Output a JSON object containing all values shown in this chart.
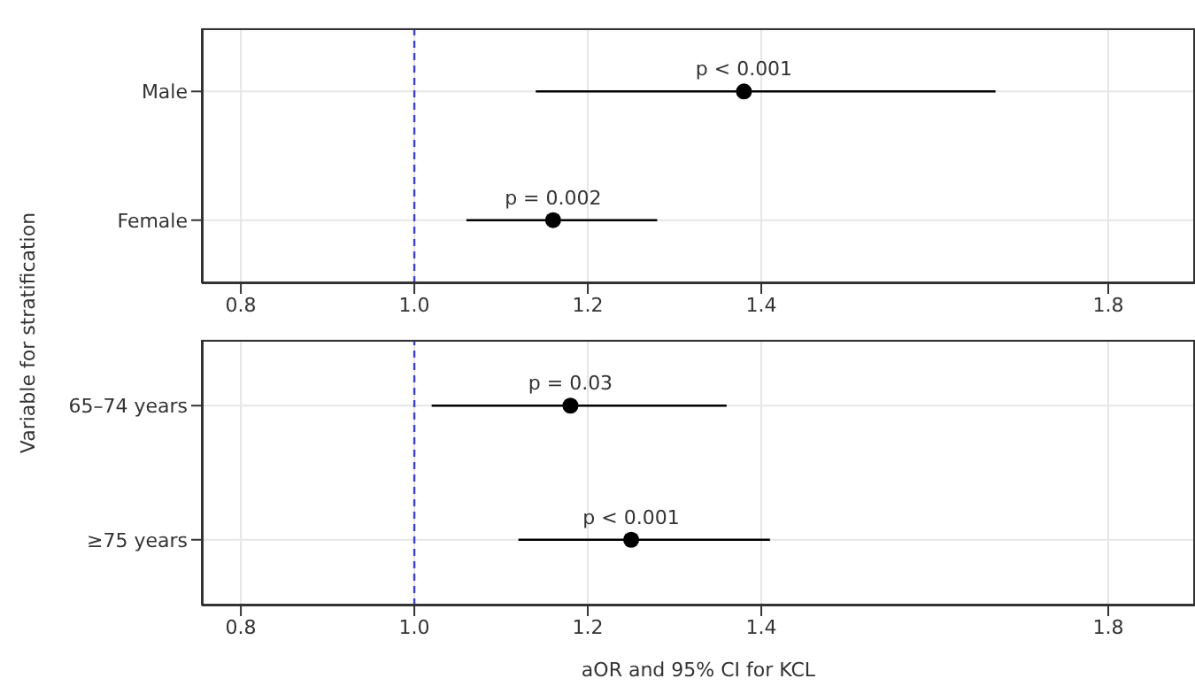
{
  "chart_data": [
    {
      "type": "scatter",
      "ylabel": "Variable for stratification",
      "categories": [
        "Male",
        "Female"
      ],
      "orientation": "horizontal",
      "series": [
        {
          "color": "#000000",
          "values": [
            1.38,
            1.16
          ],
          "errors": [
            [
              1.14,
              1.67
            ],
            [
              1.06,
              1.28
            ]
          ]
        }
      ],
      "xlim": [
        0.755,
        1.9
      ],
      "xticks": [
        {
          "value": 0.8,
          "label": "0.8"
        },
        {
          "value": 1.0,
          "label": "1.0"
        },
        {
          "value": 1.2,
          "label": "1.2"
        },
        {
          "value": 1.4,
          "label": "1.4"
        },
        {
          "value": 1.8,
          "label": "1.8"
        }
      ],
      "grid": true,
      "marker": "circle",
      "ref_lines": [
        {
          "axis": "x",
          "value": 1.0,
          "color": "#4040c8",
          "line_style": "dashed"
        }
      ],
      "annotations": [
        {
          "text": "p < 0.001",
          "x": 1.38,
          "y": "Male"
        },
        {
          "text": "p = 0.002",
          "x": 1.16,
          "y": "Female"
        }
      ]
    },
    {
      "type": "scatter",
      "xlabel": "aOR and 95% CI for KCL",
      "categories": [
        "65–74 years",
        "≥75 years"
      ],
      "orientation": "horizontal",
      "series": [
        {
          "color": "#000000",
          "values": [
            1.18,
            1.25
          ],
          "errors": [
            [
              1.02,
              1.36
            ],
            [
              1.12,
              1.41
            ]
          ]
        }
      ],
      "xlim": [
        0.755,
        1.9
      ],
      "xticks": [
        {
          "value": 0.8,
          "label": "0.8"
        },
        {
          "value": 1.0,
          "label": "1.0"
        },
        {
          "value": 1.2,
          "label": "1.2"
        },
        {
          "value": 1.4,
          "label": "1.4"
        },
        {
          "value": 1.8,
          "label": "1.8"
        }
      ],
      "grid": true,
      "marker": "circle",
      "ref_lines": [
        {
          "axis": "x",
          "value": 1.0,
          "color": "#4040c8",
          "line_style": "dashed"
        }
      ],
      "annotations": [
        {
          "text": "p = 0.03",
          "x": 1.18,
          "y": "65–74 years"
        },
        {
          "text": "p < 0.001",
          "x": 1.25,
          "y": "≥75 years"
        }
      ]
    }
  ]
}
